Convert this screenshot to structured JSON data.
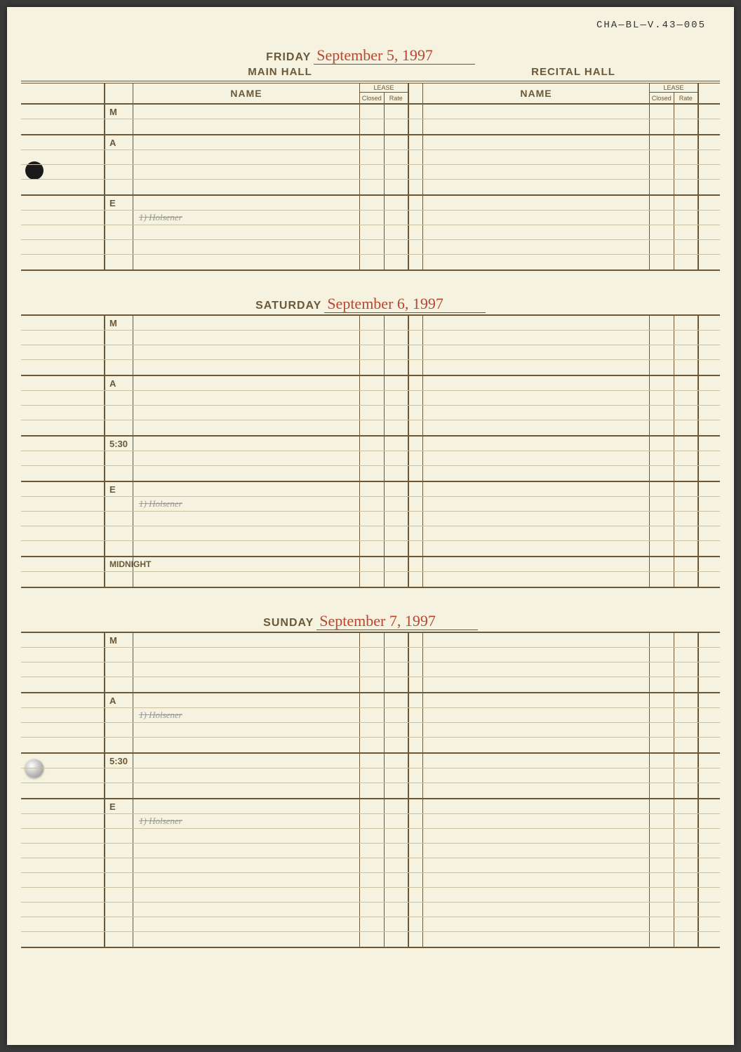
{
  "archive_ref": "CHA—BL—V.43—005",
  "halls": {
    "main": "MAIN HALL",
    "recital": "RECITAL HALL"
  },
  "table_headers": {
    "name": "NAME",
    "lease": "LEASE",
    "closed": "Closed",
    "rate": "Rate"
  },
  "days": [
    {
      "day_label": "FRIDAY",
      "date_written": "September 5, 1997",
      "show_hall_headers": true,
      "show_table_header": true,
      "blocks": [
        {
          "label": "M",
          "rows": 2,
          "entry": ""
        },
        {
          "label": "A",
          "rows": 4,
          "entry": ""
        },
        {
          "label": "E",
          "rows": 5,
          "entry": "1) Holsener"
        }
      ]
    },
    {
      "day_label": "SATURDAY",
      "date_written": "September 6, 1997",
      "show_hall_headers": false,
      "show_table_header": false,
      "blocks": [
        {
          "label": "M",
          "rows": 4,
          "entry": ""
        },
        {
          "label": "A",
          "rows": 4,
          "entry": ""
        },
        {
          "label": "5:30",
          "rows": 3,
          "entry": ""
        },
        {
          "label": "E",
          "rows": 5,
          "entry": "1) Holsener"
        },
        {
          "label": "MIDNIGHT",
          "rows": 2,
          "entry": "",
          "wide": true
        }
      ]
    },
    {
      "day_label": "SUNDAY",
      "date_written": "September 7, 1997",
      "show_hall_headers": false,
      "show_table_header": false,
      "blocks": [
        {
          "label": "M",
          "rows": 4,
          "entry": ""
        },
        {
          "label": "A",
          "rows": 4,
          "entry": "1) Holsener"
        },
        {
          "label": "5:30",
          "rows": 3,
          "entry": ""
        },
        {
          "label": "E",
          "rows": 10,
          "entry": "1) Holsener"
        }
      ]
    }
  ],
  "colors": {
    "paper": "#f5f2e0",
    "ink_brown": "#6b5838",
    "rule_light": "#c8c0a0",
    "handwriting_red": "#b84530",
    "pencil": "#999999"
  }
}
